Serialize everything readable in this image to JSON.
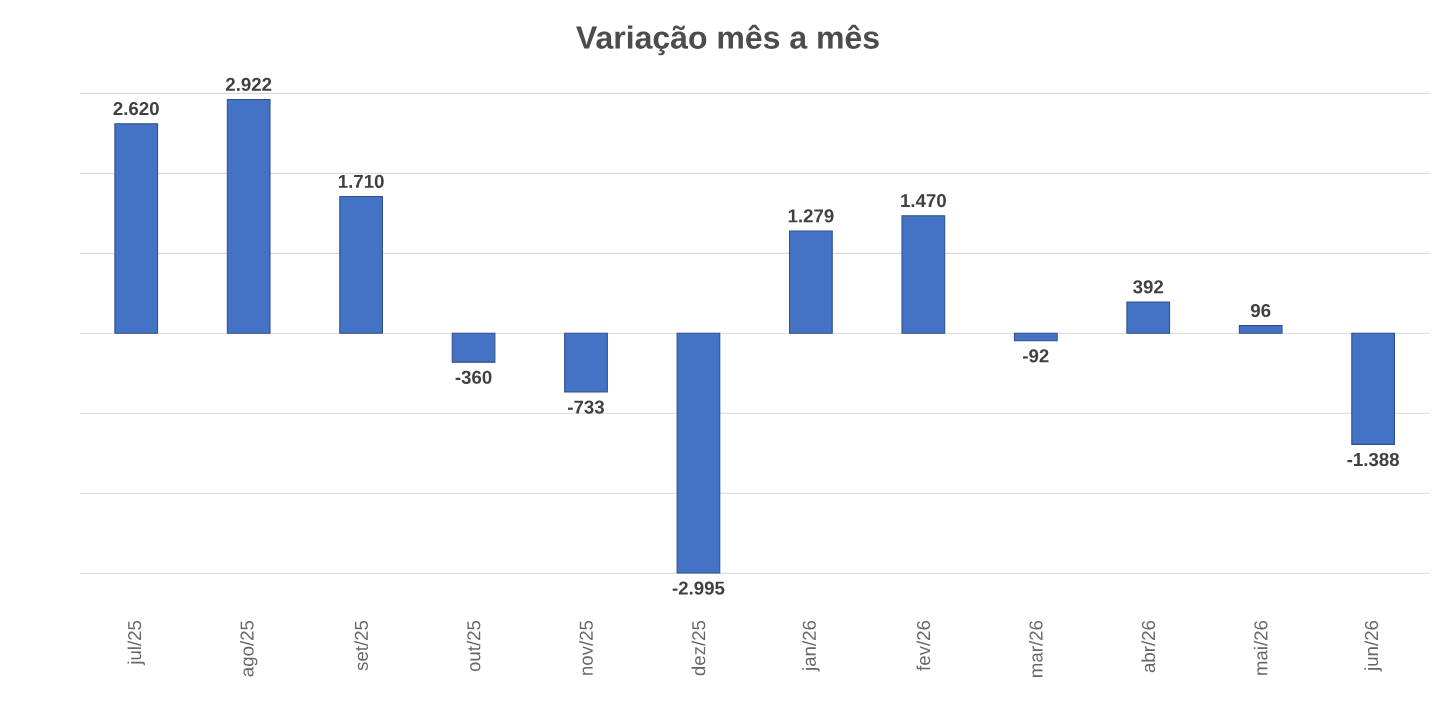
{
  "chart_data": {
    "type": "bar",
    "title": "Variação mês a mês",
    "categories": [
      "jul/25",
      "ago/25",
      "set/25",
      "out/25",
      "nov/25",
      "dez/25",
      "jan/26",
      "fev/26",
      "mar/26",
      "abr/26",
      "mai/26",
      "jun/26"
    ],
    "values": [
      2620,
      2922,
      1710,
      -360,
      -733,
      -2995,
      1279,
      1470,
      -92,
      392,
      96,
      -1388
    ],
    "value_labels": [
      "2.620",
      "2.922",
      "1.710",
      "-360",
      "-733",
      "-2.995",
      "1.279",
      "1.470",
      "-92",
      "392",
      "96",
      "-1.388"
    ],
    "color": "#4472c4",
    "ylim": [
      -3000,
      3000
    ],
    "yticks": [
      {
        "value": -3000,
        "label": null
      },
      {
        "value": -2000,
        "label": null
      },
      {
        "value": -1000,
        "label": null
      },
      {
        "value": 0,
        "label": null
      },
      {
        "value": 1000,
        "label": null
      },
      {
        "value": 2000,
        "label": null
      },
      {
        "value": 3000,
        "label": null
      }
    ],
    "grid": "y",
    "tick_labels": "x"
  }
}
